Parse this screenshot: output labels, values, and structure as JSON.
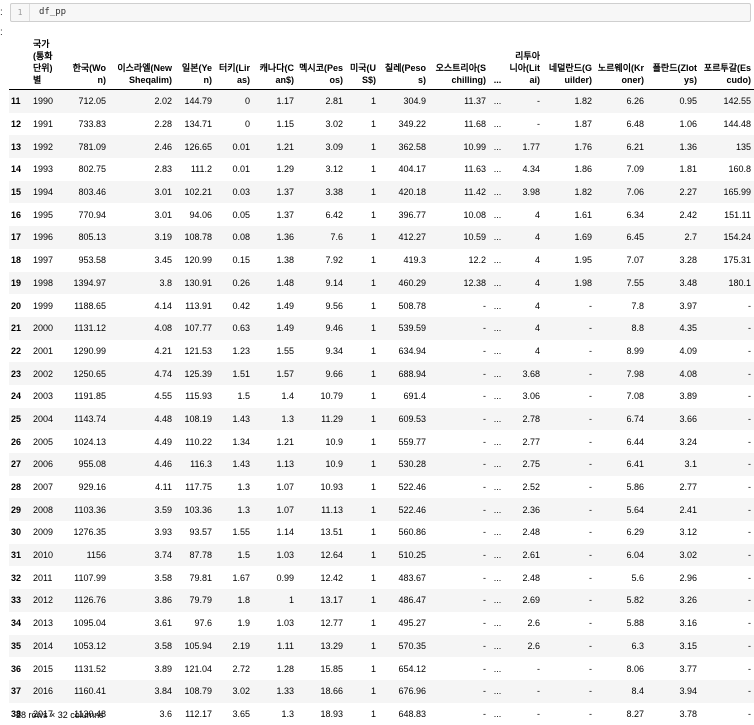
{
  "prompt_colon": ":",
  "out_colon": ":",
  "input_line_number": "1",
  "input_code": "df_pp",
  "table": {
    "headers": [
      "국가(통화단위)별",
      "한국(Won)",
      "이스라엘(New Sheqalim)",
      "일본(Yen)",
      "터키(Liras)",
      "캐나다(Can$)",
      "멕시코(Pesos)",
      "미국(US$)",
      "칠레(Pesos)",
      "오스트리아(Schilling)",
      "...",
      "리투아니아(Litai)",
      "네덜란드(Guilder)",
      "노르웨이(Kroner)",
      "폴란드(Zlotys)",
      "포르투갈(Escudo)"
    ],
    "rows": [
      [
        "11",
        "1990",
        "712.05",
        "2.02",
        "144.79",
        "0",
        "1.17",
        "2.81",
        "1",
        "304.9",
        "11.37",
        "...",
        "-",
        "1.82",
        "6.26",
        "0.95",
        "142.55"
      ],
      [
        "12",
        "1991",
        "733.83",
        "2.28",
        "134.71",
        "0",
        "1.15",
        "3.02",
        "1",
        "349.22",
        "11.68",
        "...",
        "-",
        "1.87",
        "6.48",
        "1.06",
        "144.48"
      ],
      [
        "13",
        "1992",
        "781.09",
        "2.46",
        "126.65",
        "0.01",
        "1.21",
        "3.09",
        "1",
        "362.58",
        "10.99",
        "...",
        "1.77",
        "1.76",
        "6.21",
        "1.36",
        "135"
      ],
      [
        "14",
        "1993",
        "802.75",
        "2.83",
        "111.2",
        "0.01",
        "1.29",
        "3.12",
        "1",
        "404.17",
        "11.63",
        "...",
        "4.34",
        "1.86",
        "7.09",
        "1.81",
        "160.8"
      ],
      [
        "15",
        "1994",
        "803.46",
        "3.01",
        "102.21",
        "0.03",
        "1.37",
        "3.38",
        "1",
        "420.18",
        "11.42",
        "...",
        "3.98",
        "1.82",
        "7.06",
        "2.27",
        "165.99"
      ],
      [
        "16",
        "1995",
        "770.94",
        "3.01",
        "94.06",
        "0.05",
        "1.37",
        "6.42",
        "1",
        "396.77",
        "10.08",
        "...",
        "4",
        "1.61",
        "6.34",
        "2.42",
        "151.11"
      ],
      [
        "17",
        "1996",
        "805.13",
        "3.19",
        "108.78",
        "0.08",
        "1.36",
        "7.6",
        "1",
        "412.27",
        "10.59",
        "...",
        "4",
        "1.69",
        "6.45",
        "2.7",
        "154.24"
      ],
      [
        "18",
        "1997",
        "953.58",
        "3.45",
        "120.99",
        "0.15",
        "1.38",
        "7.92",
        "1",
        "419.3",
        "12.2",
        "...",
        "4",
        "1.95",
        "7.07",
        "3.28",
        "175.31"
      ],
      [
        "19",
        "1998",
        "1394.97",
        "3.8",
        "130.91",
        "0.26",
        "1.48",
        "9.14",
        "1",
        "460.29",
        "12.38",
        "...",
        "4",
        "1.98",
        "7.55",
        "3.48",
        "180.1"
      ],
      [
        "20",
        "1999",
        "1188.65",
        "4.14",
        "113.91",
        "0.42",
        "1.49",
        "9.56",
        "1",
        "508.78",
        "-",
        "...",
        "4",
        "-",
        "7.8",
        "3.97",
        "-"
      ],
      [
        "21",
        "2000",
        "1131.12",
        "4.08",
        "107.77",
        "0.63",
        "1.49",
        "9.46",
        "1",
        "539.59",
        "-",
        "...",
        "4",
        "-",
        "8.8",
        "4.35",
        "-"
      ],
      [
        "22",
        "2001",
        "1290.99",
        "4.21",
        "121.53",
        "1.23",
        "1.55",
        "9.34",
        "1",
        "634.94",
        "-",
        "...",
        "4",
        "-",
        "8.99",
        "4.09",
        "-"
      ],
      [
        "23",
        "2002",
        "1250.65",
        "4.74",
        "125.39",
        "1.51",
        "1.57",
        "9.66",
        "1",
        "688.94",
        "-",
        "...",
        "3.68",
        "-",
        "7.98",
        "4.08",
        "-"
      ],
      [
        "24",
        "2003",
        "1191.85",
        "4.55",
        "115.93",
        "1.5",
        "1.4",
        "10.79",
        "1",
        "691.4",
        "-",
        "...",
        "3.06",
        "-",
        "7.08",
        "3.89",
        "-"
      ],
      [
        "25",
        "2004",
        "1143.74",
        "4.48",
        "108.19",
        "1.43",
        "1.3",
        "11.29",
        "1",
        "609.53",
        "-",
        "...",
        "2.78",
        "-",
        "6.74",
        "3.66",
        "-"
      ],
      [
        "26",
        "2005",
        "1024.13",
        "4.49",
        "110.22",
        "1.34",
        "1.21",
        "10.9",
        "1",
        "559.77",
        "-",
        "...",
        "2.77",
        "-",
        "6.44",
        "3.24",
        "-"
      ],
      [
        "27",
        "2006",
        "955.08",
        "4.46",
        "116.3",
        "1.43",
        "1.13",
        "10.9",
        "1",
        "530.28",
        "-",
        "...",
        "2.75",
        "-",
        "6.41",
        "3.1",
        "-"
      ],
      [
        "28",
        "2007",
        "929.16",
        "4.11",
        "117.75",
        "1.3",
        "1.07",
        "10.93",
        "1",
        "522.46",
        "-",
        "...",
        "2.52",
        "-",
        "5.86",
        "2.77",
        "-"
      ],
      [
        "29",
        "2008",
        "1103.36",
        "3.59",
        "103.36",
        "1.3",
        "1.07",
        "11.13",
        "1",
        "522.46",
        "-",
        "...",
        "2.36",
        "-",
        "5.64",
        "2.41",
        "-"
      ],
      [
        "30",
        "2009",
        "1276.35",
        "3.93",
        "93.57",
        "1.55",
        "1.14",
        "13.51",
        "1",
        "560.86",
        "-",
        "...",
        "2.48",
        "-",
        "6.29",
        "3.12",
        "-"
      ],
      [
        "31",
        "2010",
        "1156",
        "3.74",
        "87.78",
        "1.5",
        "1.03",
        "12.64",
        "1",
        "510.25",
        "-",
        "...",
        "2.61",
        "-",
        "6.04",
        "3.02",
        "-"
      ],
      [
        "32",
        "2011",
        "1107.99",
        "3.58",
        "79.81",
        "1.67",
        "0.99",
        "12.42",
        "1",
        "483.67",
        "-",
        "...",
        "2.48",
        "-",
        "5.6",
        "2.96",
        "-"
      ],
      [
        "33",
        "2012",
        "1126.76",
        "3.86",
        "79.79",
        "1.8",
        "1",
        "13.17",
        "1",
        "486.47",
        "-",
        "...",
        "2.69",
        "-",
        "5.82",
        "3.26",
        "-"
      ],
      [
        "34",
        "2013",
        "1095.04",
        "3.61",
        "97.6",
        "1.9",
        "1.03",
        "12.77",
        "1",
        "495.27",
        "-",
        "...",
        "2.6",
        "-",
        "5.88",
        "3.16",
        "-"
      ],
      [
        "35",
        "2014",
        "1053.12",
        "3.58",
        "105.94",
        "2.19",
        "1.11",
        "13.29",
        "1",
        "570.35",
        "-",
        "...",
        "2.6",
        "-",
        "6.3",
        "3.15",
        "-"
      ],
      [
        "36",
        "2015",
        "1131.52",
        "3.89",
        "121.04",
        "2.72",
        "1.28",
        "15.85",
        "1",
        "654.12",
        "-",
        "...",
        "-",
        "-",
        "8.06",
        "3.77",
        "-"
      ],
      [
        "37",
        "2016",
        "1160.41",
        "3.84",
        "108.79",
        "3.02",
        "1.33",
        "18.66",
        "1",
        "676.96",
        "-",
        "...",
        "-",
        "-",
        "8.4",
        "3.94",
        "-"
      ],
      [
        "38",
        "2017",
        "1130.48",
        "3.6",
        "112.17",
        "3.65",
        "1.3",
        "18.93",
        "1",
        "648.83",
        "-",
        "...",
        "-",
        "-",
        "8.27",
        "3.78",
        "-"
      ]
    ]
  },
  "footer": "28 rows × 32 columns"
}
